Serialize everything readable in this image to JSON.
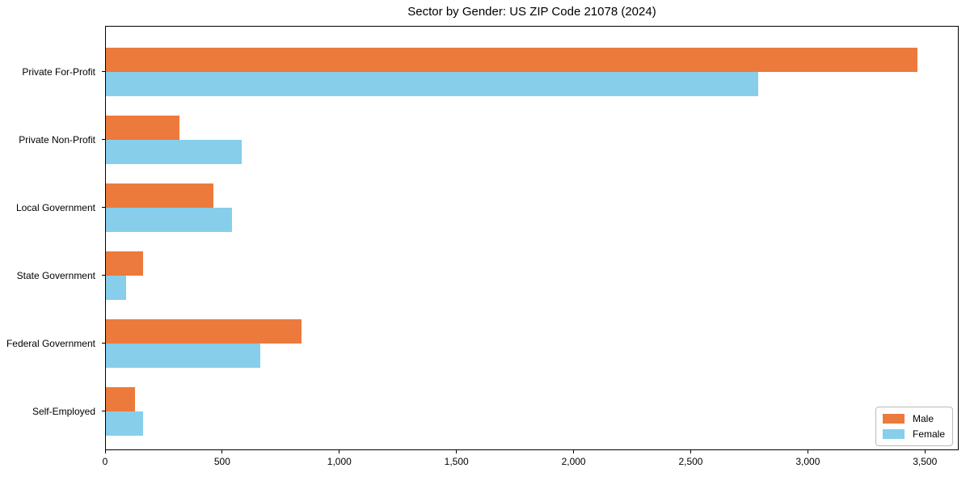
{
  "chart_data": {
    "type": "bar",
    "orientation": "horizontal",
    "title": "Sector by Gender: US ZIP Code 21078 (2024)",
    "categories": [
      "Private For-Profit",
      "Private Non-Profit",
      "Local Government",
      "State Government",
      "Federal Government",
      "Self-Employed"
    ],
    "series": [
      {
        "name": "Male",
        "color": "#EC7A3C",
        "values": [
          3470,
          315,
          460,
          160,
          835,
          125
        ]
      },
      {
        "name": "Female",
        "color": "#87CEEB",
        "values": [
          2790,
          580,
          540,
          85,
          660,
          160
        ]
      }
    ],
    "xlabel": "",
    "ylabel": "",
    "xlim": [
      0,
      3644
    ],
    "xticks": [
      0,
      500,
      1000,
      1500,
      2000,
      2500,
      3000,
      3500
    ],
    "xtick_labels": [
      "0",
      "500",
      "1,000",
      "1,500",
      "2,000",
      "2,500",
      "3,000",
      "3,500"
    ],
    "legend": {
      "position": "lower-right",
      "entries": [
        "Male",
        "Female"
      ]
    },
    "grid": false,
    "background_color": "#ffffff",
    "spine_color": "#000000"
  }
}
